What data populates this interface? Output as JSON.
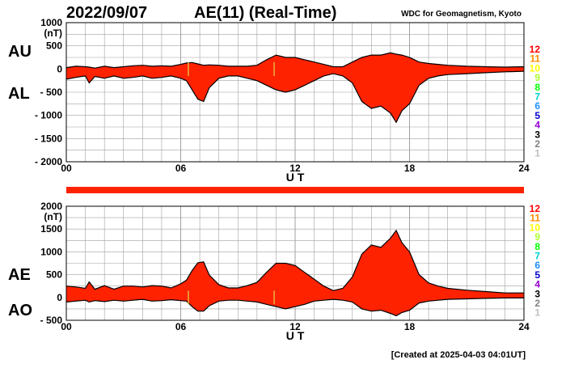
{
  "header": {
    "date": "2022/09/07",
    "title": "AE(11) (Real-Time)",
    "source": "WDC for Geomagnetism, Kyoto"
  },
  "footer": {
    "created": "[Created at 2025-04-03 04:01UT]"
  },
  "level_scale": {
    "labels": [
      "12",
      "11",
      "10",
      "9",
      "8",
      "7",
      "6",
      "5",
      "4",
      "3",
      "2",
      "1"
    ],
    "colors": [
      "#ff1493",
      "#ff0000",
      "#ff8c00",
      "#ffff00",
      "#adff2f",
      "#00ff00",
      "#00ced1",
      "#1e90ff",
      "#0000cd",
      "#9400d3",
      "#000000",
      "#808080",
      "#c0c0c0"
    ]
  },
  "colors": {
    "fill": "#ff2200",
    "edge": "#000000",
    "grid": "#a0a0a0",
    "marker": "#e0c040",
    "bar": "#ff2200"
  },
  "chart_data": [
    {
      "type": "area",
      "ylabel": "(nT)",
      "xlabel": "U T",
      "series_labels": [
        "AU",
        "AL"
      ],
      "xlim": [
        0,
        24
      ],
      "ylim": [
        -2000,
        1000
      ],
      "x_ticks": [
        "00",
        "06",
        "12",
        "18",
        "24"
      ],
      "y_ticks": [
        "1000",
        "500",
        "0",
        "- 500",
        "- 1000",
        "- 1500",
        "- 2000"
      ],
      "x": [
        0,
        0.5,
        1,
        1.2,
        1.5,
        2,
        2.5,
        3,
        3.5,
        4,
        4.5,
        5,
        5.5,
        6,
        6.3,
        6.6,
        6.9,
        7.2,
        7.5,
        8,
        8.5,
        9,
        9.5,
        10,
        10.5,
        11,
        11.5,
        12,
        12.5,
        13,
        13.5,
        14,
        14.5,
        15,
        15.5,
        16,
        16.5,
        17,
        17.3,
        17.6,
        18,
        18.5,
        19,
        19.5,
        20,
        21,
        22,
        23,
        24
      ],
      "upper": [
        30,
        60,
        50,
        40,
        20,
        60,
        30,
        50,
        70,
        80,
        60,
        70,
        60,
        100,
        130,
        140,
        110,
        80,
        90,
        80,
        60,
        60,
        60,
        80,
        200,
        300,
        250,
        250,
        200,
        150,
        100,
        50,
        50,
        150,
        250,
        300,
        300,
        350,
        320,
        300,
        250,
        150,
        120,
        100,
        80,
        60,
        50,
        40,
        50
      ],
      "lower": [
        -220,
        -180,
        -150,
        -300,
        -160,
        -200,
        -150,
        -200,
        -180,
        -150,
        -200,
        -180,
        -150,
        -200,
        -250,
        -450,
        -650,
        -700,
        -400,
        -200,
        -150,
        -150,
        -200,
        -250,
        -350,
        -450,
        -500,
        -450,
        -350,
        -250,
        -150,
        -100,
        -150,
        -300,
        -700,
        -850,
        -800,
        -950,
        -1150,
        -900,
        -750,
        -350,
        -200,
        -150,
        -120,
        -100,
        -80,
        -60,
        -50
      ]
    },
    {
      "type": "area",
      "ylabel": "(nT)",
      "xlabel": "U T",
      "series_labels": [
        "AE",
        "AO"
      ],
      "xlim": [
        0,
        24
      ],
      "ylim": [
        -500,
        2000
      ],
      "x_ticks": [
        "00",
        "06",
        "12",
        "18",
        "24"
      ],
      "y_ticks": [
        "2000",
        "1500",
        "1000",
        "500",
        "0",
        "- 500"
      ],
      "x": [
        0,
        0.5,
        1,
        1.2,
        1.5,
        2,
        2.5,
        3,
        3.5,
        4,
        4.5,
        5,
        5.5,
        6,
        6.3,
        6.6,
        6.9,
        7.2,
        7.5,
        8,
        8.5,
        9,
        9.5,
        10,
        10.5,
        11,
        11.5,
        12,
        12.5,
        13,
        13.5,
        14,
        14.5,
        15,
        15.5,
        16,
        16.5,
        17,
        17.3,
        17.6,
        18,
        18.5,
        19,
        19.5,
        20,
        21,
        22,
        23,
        24
      ],
      "upper": [
        250,
        230,
        200,
        340,
        180,
        260,
        180,
        250,
        250,
        230,
        260,
        250,
        210,
        300,
        380,
        590,
        760,
        780,
        490,
        280,
        210,
        210,
        260,
        330,
        550,
        750,
        750,
        700,
        550,
        400,
        250,
        150,
        200,
        450,
        950,
        1150,
        1100,
        1300,
        1470,
        1200,
        1000,
        500,
        320,
        250,
        200,
        160,
        130,
        100,
        100
      ],
      "lower": [
        -100,
        -80,
        -60,
        -100,
        -70,
        -90,
        -60,
        -80,
        -60,
        -40,
        -80,
        -70,
        -50,
        -70,
        -80,
        -200,
        -300,
        -300,
        -180,
        -80,
        -60,
        -60,
        -80,
        -100,
        -150,
        -200,
        -250,
        -200,
        -150,
        -80,
        -60,
        -40,
        -60,
        -100,
        -250,
        -300,
        -280,
        -350,
        -400,
        -330,
        -280,
        -120,
        -80,
        -60,
        -40,
        -30,
        -20,
        -10,
        -10
      ]
    }
  ]
}
